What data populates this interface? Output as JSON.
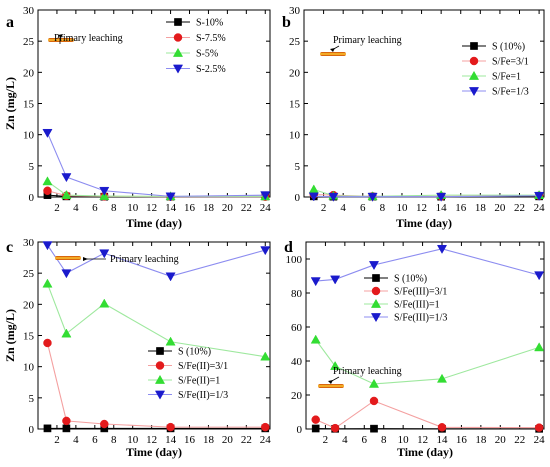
{
  "colors": {
    "S": "#000000",
    "ratio_3_1": "#e31a1c",
    "ratio_1": "#33dd33",
    "ratio_1_3": "#1a1acc",
    "line_3_1": "#f4a0a0",
    "line_1": "#9ee89e",
    "line_1_3": "#8c8cf0",
    "bar_dark": "#cc4400",
    "bar_light": "#ffcc33"
  },
  "chart_data": [
    {
      "panel": "a",
      "type": "line",
      "xlabel": "Time (day)",
      "ylabel": "Zn (mg/L)",
      "xlim": [
        0,
        24.5
      ],
      "ylim": [
        0,
        30
      ],
      "xticks": [
        2,
        4,
        6,
        8,
        10,
        12,
        14,
        16,
        18,
        20,
        22,
        24
      ],
      "yticks": [
        0,
        5,
        10,
        15,
        20,
        25,
        30
      ],
      "annotation": "Primary leaching",
      "legend_position": "top-right",
      "series": [
        {
          "name": "S-10%",
          "marker": "square",
          "color_key": "S",
          "line_key": "S",
          "x": [
            1,
            3,
            7,
            14,
            24
          ],
          "y": [
            0.3,
            0.1,
            0.05,
            0.05,
            0.1
          ]
        },
        {
          "name": "S-7.5%",
          "marker": "circle",
          "color_key": "ratio_3_1",
          "line_key": "line_3_1",
          "x": [
            1,
            3,
            7,
            14,
            24
          ],
          "y": [
            1.0,
            0.2,
            0.1,
            0.05,
            0.05
          ]
        },
        {
          "name": "S-5%",
          "marker": "triangle-up",
          "color_key": "ratio_1",
          "line_key": "line_1",
          "x": [
            1,
            3,
            7,
            14,
            24
          ],
          "y": [
            2.5,
            0.3,
            0.15,
            0.1,
            0.1
          ]
        },
        {
          "name": "S-2.5%",
          "marker": "triangle-down",
          "color_key": "ratio_1_3",
          "line_key": "line_1_3",
          "x": [
            1,
            3,
            7,
            14,
            24
          ],
          "y": [
            10.3,
            3.2,
            1.0,
            0.1,
            0.3
          ]
        }
      ]
    },
    {
      "panel": "b",
      "type": "line",
      "xlabel": "Time (day)",
      "ylabel": "",
      "xlim": [
        0,
        24.5
      ],
      "ylim": [
        0,
        30
      ],
      "xticks": [
        2,
        4,
        6,
        8,
        10,
        12,
        14,
        16,
        18,
        20,
        22,
        24
      ],
      "yticks": [
        0,
        5,
        10,
        15,
        20,
        25,
        30
      ],
      "annotation": "Primary leaching",
      "legend_position": "top-right",
      "series": [
        {
          "name": "S (10%)",
          "marker": "square",
          "color_key": "S",
          "line_key": "S",
          "x": [
            1,
            3,
            7,
            14,
            24
          ],
          "y": [
            0.1,
            0.05,
            0.05,
            0.05,
            0.1
          ]
        },
        {
          "name": "S/Fe=3/1",
          "marker": "circle",
          "color_key": "ratio_3_1",
          "line_key": "line_3_1",
          "x": [
            1,
            3,
            7,
            14,
            24
          ],
          "y": [
            0.4,
            0.3,
            0.1,
            0.1,
            0.2
          ]
        },
        {
          "name": "S/Fe=1",
          "marker": "triangle-up",
          "color_key": "ratio_1",
          "line_key": "line_1",
          "x": [
            1,
            3,
            7,
            14,
            24
          ],
          "y": [
            1.2,
            0.2,
            0.1,
            0.3,
            0.3
          ]
        },
        {
          "name": "S/Fe=1/3",
          "marker": "triangle-down",
          "color_key": "ratio_1_3",
          "line_key": "line_1_3",
          "x": [
            1,
            3,
            7,
            14,
            24
          ],
          "y": [
            0.1,
            0.05,
            0.05,
            0.05,
            0.2
          ]
        }
      ]
    },
    {
      "panel": "c",
      "type": "line",
      "xlabel": "Time (day)",
      "ylabel": "Zn (mg/L)",
      "xlim": [
        0,
        24.5
      ],
      "ylim": [
        0,
        30
      ],
      "xticks": [
        2,
        4,
        6,
        8,
        10,
        12,
        14,
        16,
        18,
        20,
        22,
        24
      ],
      "yticks": [
        0,
        5,
        10,
        15,
        20,
        25,
        30
      ],
      "annotation": "Primary leaching",
      "legend_position": "bottom-right",
      "series": [
        {
          "name": "S (10%)",
          "marker": "square",
          "color_key": "S",
          "line_key": "S",
          "x": [
            1,
            3,
            7,
            14,
            24
          ],
          "y": [
            0.1,
            0.1,
            0.1,
            0.1,
            0.1
          ]
        },
        {
          "name": "S/Fe(II)=3/1",
          "marker": "circle",
          "color_key": "ratio_3_1",
          "line_key": "line_3_1",
          "x": [
            1,
            3,
            7,
            14,
            24
          ],
          "y": [
            13.8,
            1.3,
            0.8,
            0.3,
            0.3
          ]
        },
        {
          "name": "S/Fe(II)=1",
          "marker": "triangle-up",
          "color_key": "ratio_1",
          "line_key": "line_1",
          "x": [
            1,
            3,
            7,
            14,
            24
          ],
          "y": [
            23.3,
            15.3,
            20.1,
            14.0,
            11.6
          ]
        },
        {
          "name": "S/Fe(II)=1/3",
          "marker": "triangle-down",
          "color_key": "ratio_1_3",
          "line_key": "line_1_3",
          "x": [
            1,
            3,
            7,
            14,
            24
          ],
          "y": [
            29.5,
            25.0,
            28.2,
            24.5,
            28.7
          ]
        }
      ]
    },
    {
      "panel": "d",
      "type": "line",
      "xlabel": "Time (day)",
      "ylabel": "",
      "xlim": [
        0,
        24.5
      ],
      "ylim": [
        0,
        110
      ],
      "xticks": [
        2,
        4,
        6,
        8,
        10,
        12,
        14,
        16,
        18,
        20,
        22,
        24
      ],
      "yticks": [
        0,
        20,
        40,
        60,
        80,
        100
      ],
      "annotation": "Primary leaching",
      "legend_position": "top-center",
      "series": [
        {
          "name": "S (10%)",
          "marker": "square",
          "color_key": "S",
          "line_key": "S",
          "x": [
            1,
            3,
            7,
            14,
            24
          ],
          "y": [
            0.3,
            0.1,
            0.2,
            0.1,
            0.1
          ]
        },
        {
          "name": "S/Fe(III)=3/1",
          "marker": "circle",
          "color_key": "ratio_3_1",
          "line_key": "line_3_1",
          "x": [
            1,
            3,
            7,
            14,
            24
          ],
          "y": [
            5.5,
            0.5,
            16.5,
            1.0,
            0.8
          ]
        },
        {
          "name": "S/Fe(III)=1",
          "marker": "triangle-up",
          "color_key": "ratio_1",
          "line_key": "line_1",
          "x": [
            1,
            3,
            7,
            14,
            24
          ],
          "y": [
            52.5,
            37.0,
            26.5,
            29.5,
            48.0
          ]
        },
        {
          "name": "S/Fe(III)=1/3",
          "marker": "triangle-down",
          "color_key": "ratio_1_3",
          "line_key": "line_1_3",
          "x": [
            1,
            3,
            7,
            14,
            24
          ],
          "y": [
            87.0,
            88.0,
            96.5,
            106.0,
            90.5
          ]
        }
      ]
    }
  ]
}
